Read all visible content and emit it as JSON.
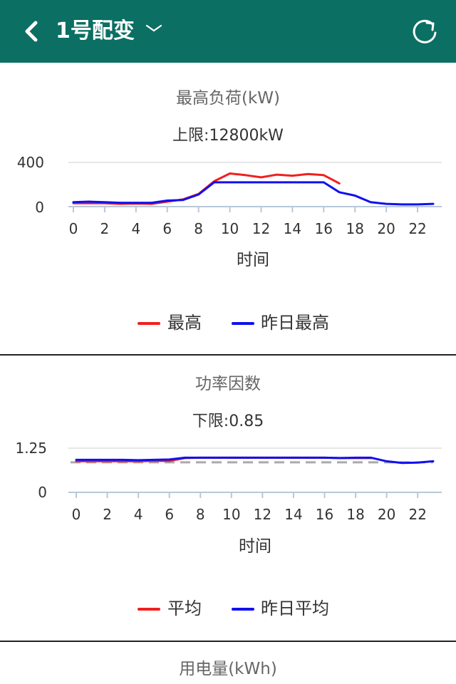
{
  "header": {
    "title": "1号配变",
    "back_icon": "chevron-left-icon",
    "dropdown_icon": "chevron-down-icon",
    "refresh_icon": "refresh-icon",
    "bg_color": "#0b6f63"
  },
  "charts": [
    {
      "title": "最高负荷(kW)",
      "subtitle": "上限:12800kW",
      "xlabel": "时间",
      "y_ticks": [
        "400",
        "0"
      ],
      "x_ticks": [
        "0",
        "2",
        "4",
        "6",
        "8",
        "10",
        "12",
        "14",
        "16",
        "18",
        "20",
        "22"
      ],
      "legend": [
        {
          "label": "最高",
          "color": "#f02020"
        },
        {
          "label": "昨日最高",
          "color": "#1010f0"
        }
      ]
    },
    {
      "title": "功率因数",
      "subtitle": "下限:0.85",
      "xlabel": "时间",
      "y_ticks": [
        "1.25",
        "0"
      ],
      "x_ticks": [
        "0",
        "2",
        "4",
        "6",
        "8",
        "10",
        "12",
        "14",
        "16",
        "18",
        "20",
        "22"
      ],
      "legend": [
        {
          "label": "平均",
          "color": "#f02020"
        },
        {
          "label": "昨日平均",
          "color": "#1010f0"
        }
      ]
    },
    {
      "title": "用电量(kWh)"
    }
  ],
  "chart_data": [
    {
      "type": "line",
      "title": "最高负荷(kW)",
      "xlabel": "时间",
      "ylabel": "",
      "ylim": [
        0,
        400
      ],
      "x": [
        0,
        1,
        2,
        3,
        4,
        5,
        6,
        7,
        8,
        9,
        10,
        11,
        12,
        13,
        14,
        15,
        16,
        17,
        18,
        19,
        20,
        21,
        22,
        23
      ],
      "series": [
        {
          "name": "最高",
          "color": "#f02020",
          "values": [
            30,
            30,
            30,
            25,
            28,
            25,
            45,
            65,
            115,
            230,
            300,
            285,
            265,
            290,
            280,
            295,
            285,
            210,
            null,
            null,
            null,
            null,
            null,
            null
          ]
        },
        {
          "name": "昨日最高",
          "color": "#1010f0",
          "values": [
            40,
            45,
            40,
            35,
            35,
            35,
            55,
            60,
            110,
            220,
            220,
            220,
            220,
            220,
            220,
            220,
            220,
            130,
            100,
            40,
            25,
            20,
            20,
            25
          ]
        }
      ]
    },
    {
      "type": "line",
      "title": "功率因数",
      "xlabel": "时间",
      "ylabel": "",
      "ylim": [
        0,
        1.25
      ],
      "x": [
        0,
        1,
        2,
        3,
        4,
        5,
        6,
        7,
        8,
        9,
        10,
        11,
        12,
        13,
        14,
        15,
        16,
        17,
        18,
        19,
        20,
        21,
        22,
        23
      ],
      "reference_line": {
        "value": 0.85,
        "color": "#aaaaaa",
        "style": "dashed"
      },
      "series": [
        {
          "name": "平均",
          "color": "#f02020",
          "values": [
            0.88,
            0.88,
            0.88,
            0.88,
            0.88,
            0.89,
            0.89,
            0.97,
            0.98,
            0.98,
            0.98,
            0.98,
            0.98,
            0.98,
            0.98,
            0.98,
            0.98,
            0.97,
            0.97,
            0.97,
            null,
            null,
            null,
            null
          ]
        },
        {
          "name": "昨日平均",
          "color": "#1010f0",
          "values": [
            0.92,
            0.92,
            0.92,
            0.92,
            0.91,
            0.92,
            0.93,
            0.98,
            0.98,
            0.98,
            0.98,
            0.98,
            0.98,
            0.98,
            0.98,
            0.98,
            0.98,
            0.97,
            0.98,
            0.98,
            0.88,
            0.83,
            0.84,
            0.88
          ]
        }
      ]
    }
  ]
}
